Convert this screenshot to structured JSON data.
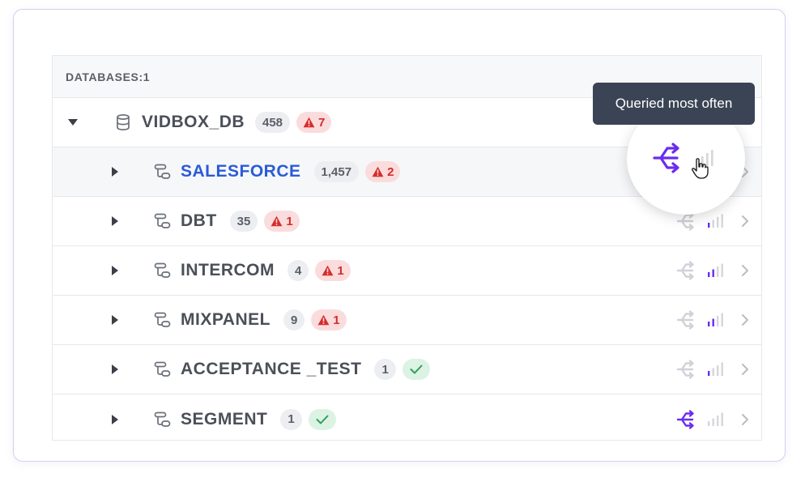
{
  "header": {
    "title": "DATABASES:1"
  },
  "database": {
    "name": "VIDBOX_DB",
    "count": "458",
    "warnings": "7"
  },
  "schemas": [
    {
      "name": "SALESFORCE",
      "count": "1,457",
      "status": "warning",
      "warnings": "2",
      "active": true,
      "popularity_bars": 0
    },
    {
      "name": "DBT",
      "count": "35",
      "status": "warning",
      "warnings": "1",
      "active": false,
      "popularity_bars": 1
    },
    {
      "name": "INTERCOM",
      "count": "4",
      "status": "warning",
      "warnings": "1",
      "active": false,
      "popularity_bars": 2
    },
    {
      "name": "MIXPANEL",
      "count": "9",
      "status": "warning",
      "warnings": "1",
      "active": false,
      "popularity_bars": 2
    },
    {
      "name": "ACCEPTANCE _TEST",
      "count": "1",
      "status": "ok",
      "warnings": "",
      "active": false,
      "popularity_bars": 1
    },
    {
      "name": "SEGMENT",
      "count": "1",
      "status": "ok",
      "warnings": "",
      "active": false,
      "popularity_bars": 0
    }
  ],
  "tooltip": {
    "text": "Queried most often"
  },
  "colors": {
    "accent": "#6a2cf0",
    "active_link": "#2a5bd7",
    "warning": "#d62c2c",
    "warning_bg": "#fbdcdc",
    "ok": "#2f9e5a",
    "ok_bg": "#dcf3e4",
    "tooltip_bg": "#3b4454"
  },
  "icons": {
    "database": "database-icon",
    "schema": "schema-icon",
    "share": "share-icon",
    "popularity": "signal-bars-icon",
    "chevron": "chevron-right-icon",
    "warning": "warning-triangle-icon",
    "ok": "check-icon",
    "cursor": "hand-cursor-icon"
  }
}
